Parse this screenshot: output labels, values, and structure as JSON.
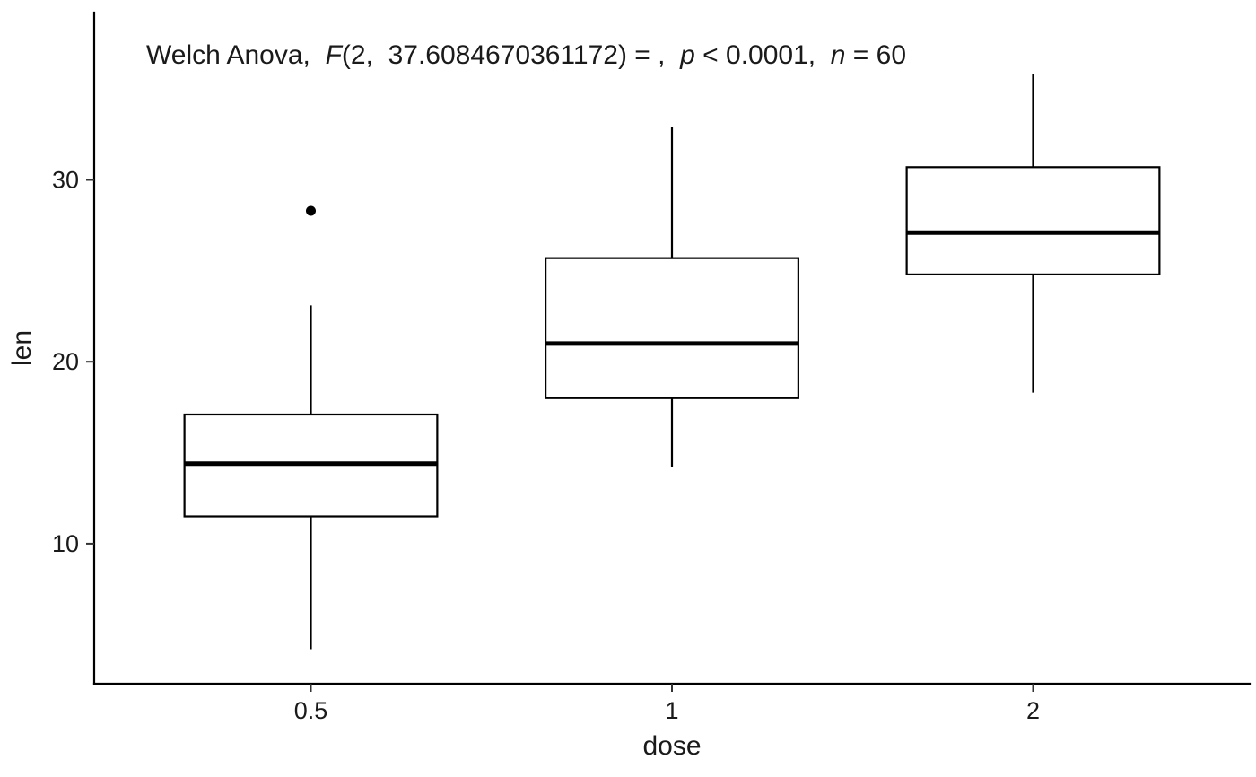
{
  "figure": {
    "background": "#ffffff",
    "colors": {
      "stroke": "#000000",
      "box_fill": "#ffffff",
      "text": "#1a1a1a"
    },
    "subtitle_parts": [
      {
        "text": "Welch Anova,  ",
        "italic": false
      },
      {
        "text": "F",
        "italic": true
      },
      {
        "text": "(2,  37.6084670361172) = ,  ",
        "italic": false
      },
      {
        "text": "p",
        "italic": true
      },
      {
        "text": " < 0.0001,  ",
        "italic": false
      },
      {
        "text": "n",
        "italic": true
      },
      {
        "text": " = 60",
        "italic": false
      }
    ]
  },
  "chart_data": {
    "type": "boxplot",
    "subtitle": "Welch Anova, F(2, 37.6084670361172) = , p < 0.0001, n = 60",
    "xlabel": "dose",
    "ylabel": "len",
    "categories": [
      "0.5",
      "1",
      "2"
    ],
    "yticks": [
      10,
      20,
      30
    ],
    "ylim": [
      2.3,
      39.2
    ],
    "grid": false,
    "legend": "none",
    "series": [
      {
        "category": "0.5",
        "whisker_low": 4.2,
        "q1": 11.5,
        "median": 14.4,
        "q3": 17.1,
        "whisker_high": 23.1,
        "outliers": [
          28.3
        ]
      },
      {
        "category": "1",
        "whisker_low": 14.2,
        "q1": 18.0,
        "median": 21.0,
        "q3": 25.7,
        "whisker_high": 32.9,
        "outliers": []
      },
      {
        "category": "2",
        "whisker_low": 18.3,
        "q1": 24.8,
        "median": 27.1,
        "q3": 30.7,
        "whisker_high": 35.8,
        "outliers": []
      }
    ],
    "stats_annotation": {
      "test": "Welch Anova",
      "df1": "2",
      "df2": "37.6084670361172",
      "F_value": "",
      "p": "< 0.0001",
      "n": "60"
    }
  }
}
